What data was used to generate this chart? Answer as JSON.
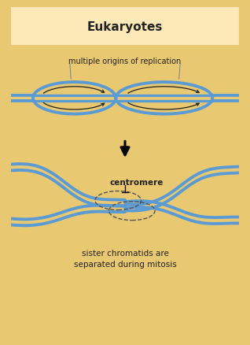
{
  "title": "Eukaryotes",
  "title_bg": "#fde9b8",
  "outer_border_color": "#e8c870",
  "inner_bg": "#ffffff",
  "dna_color": "#5b9bd5",
  "dna_lw": 2.8,
  "arrow_color": "#222222",
  "text_color": "#222222",
  "label_multiple": "multiple origins of replication",
  "label_centromere": "centromere",
  "label_sister": "sister chromatids are\nseparated during mitosis",
  "figsize": [
    3.18,
    4.39
  ],
  "dpi": 100
}
